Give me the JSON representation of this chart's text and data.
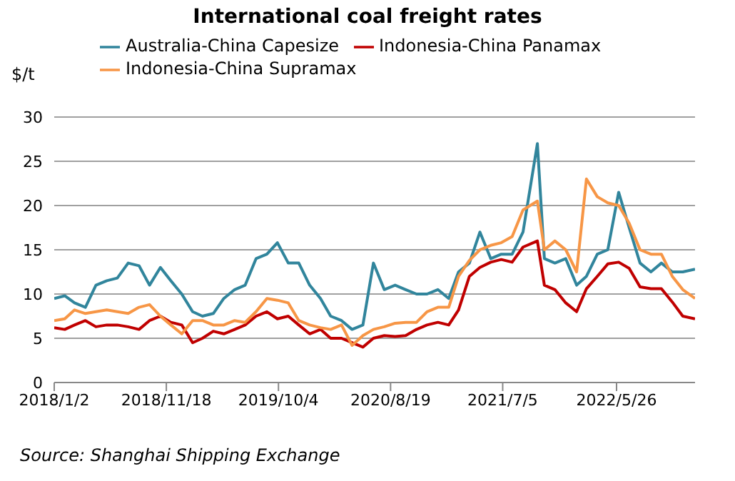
{
  "chart_data": {
    "type": "line",
    "title": "International coal freight rates",
    "ylabel": "$/t",
    "x": [
      "2018-01-02",
      "2018-02",
      "2018-03",
      "2018-04",
      "2018-05",
      "2018-06",
      "2018-07",
      "2018-08",
      "2018-09",
      "2018-10",
      "2018-11",
      "2018-12",
      "2019-01",
      "2019-02",
      "2019-03",
      "2019-04",
      "2019-05",
      "2019-06",
      "2019-07",
      "2019-08",
      "2019-09",
      "2019-10",
      "2019-11",
      "2019-12",
      "2020-01",
      "2020-02",
      "2020-03",
      "2020-04",
      "2020-05",
      "2020-06",
      "2020-07",
      "2020-08",
      "2020-09",
      "2020-10",
      "2020-11",
      "2020-12",
      "2021-01",
      "2021-02",
      "2021-03",
      "2021-04",
      "2021-05",
      "2021-06",
      "2021-07",
      "2021-08",
      "2021-09",
      "2021-10-12",
      "2021-11",
      "2021-12",
      "2022-01",
      "2022-02",
      "2022-03",
      "2022-04",
      "2022-05",
      "2022-06",
      "2022-07",
      "2022-08",
      "2022-09",
      "2022-10",
      "2022-11",
      "2022-12",
      "2023-01-05"
    ],
    "series": [
      {
        "name": "Australia-China Capesize",
        "color": "#31859c",
        "values": [
          9.5,
          9.8,
          9.0,
          8.5,
          11,
          11.5,
          11.8,
          13.5,
          13.2,
          11,
          13,
          11.5,
          10,
          8,
          7.5,
          7.8,
          9.5,
          10.5,
          11,
          14,
          14.5,
          15.8,
          13.5,
          13.5,
          11,
          9.5,
          7.5,
          7,
          6,
          6.5,
          13.5,
          10.5,
          11,
          10.5,
          10,
          10,
          10.5,
          9.5,
          12.5,
          13.5,
          17,
          14,
          14.5,
          14.5,
          17,
          27,
          14,
          13.5,
          14,
          11,
          12,
          14.5,
          15,
          21.5,
          17.5,
          13.5,
          12.5,
          13.5,
          12.5,
          12.5,
          12.8
        ]
      },
      {
        "name": "Indonesia-China Panamax",
        "color": "#c00000",
        "values": [
          6.2,
          6.0,
          6.5,
          7.0,
          6.3,
          6.5,
          6.5,
          6.3,
          6.0,
          7.0,
          7.5,
          6.8,
          6.5,
          4.5,
          5.0,
          5.8,
          5.5,
          6.0,
          6.5,
          7.5,
          8.0,
          7.2,
          7.5,
          6.5,
          5.5,
          6.0,
          5.0,
          5.0,
          4.5,
          4.0,
          5.0,
          5.3,
          5.2,
          5.3,
          6.0,
          6.5,
          6.8,
          6.5,
          8.2,
          12,
          13,
          13.6,
          13.9,
          13.6,
          15.3,
          16,
          11,
          10.5,
          9,
          8,
          10.6,
          12,
          13.4,
          13.6,
          12.9,
          10.8,
          10.6,
          10.6,
          9.1,
          7.5,
          7.2
        ]
      },
      {
        "name": "Indonesia-China Supramax",
        "color": "#f79646",
        "values": [
          7.0,
          7.2,
          8.2,
          7.8,
          8.0,
          8.2,
          8.0,
          7.8,
          8.5,
          8.8,
          7.5,
          6.5,
          5.5,
          7.0,
          7.0,
          6.5,
          6.5,
          7.0,
          6.8,
          8.0,
          9.5,
          9.3,
          9.0,
          7.0,
          6.5,
          6.2,
          6.0,
          6.5,
          4.2,
          5.3,
          6.0,
          6.3,
          6.7,
          6.8,
          6.8,
          8.0,
          8.5,
          8.5,
          12,
          13.8,
          15,
          15.5,
          15.8,
          16.5,
          19.5,
          20.5,
          15,
          16,
          15,
          12.5,
          23,
          21,
          20.3,
          20,
          18,
          15,
          14.5,
          14.5,
          12,
          10.5,
          9.5
        ]
      }
    ],
    "xlim": [
      "2018-01-02",
      "2023-01-05"
    ],
    "xticks": [
      {
        "value": "2018-01-02",
        "label": "2018/1/2"
      },
      {
        "value": "2018-11-18",
        "label": "2018/11/18"
      },
      {
        "value": "2019-10-04",
        "label": "2019/10/4"
      },
      {
        "value": "2020-08-19",
        "label": "2020/8/19"
      },
      {
        "value": "2021-07-05",
        "label": "2021/7/5"
      },
      {
        "value": "2022-05-26",
        "label": "2022/5/26"
      }
    ],
    "ylim": [
      0,
      30
    ],
    "yticks": [
      0,
      5,
      10,
      15,
      20,
      25,
      30
    ],
    "grid": "y",
    "legend": "top",
    "marker": "none",
    "line_style": "solid",
    "annotations": [
      "Source: Shanghai Shipping Exchange"
    ]
  }
}
